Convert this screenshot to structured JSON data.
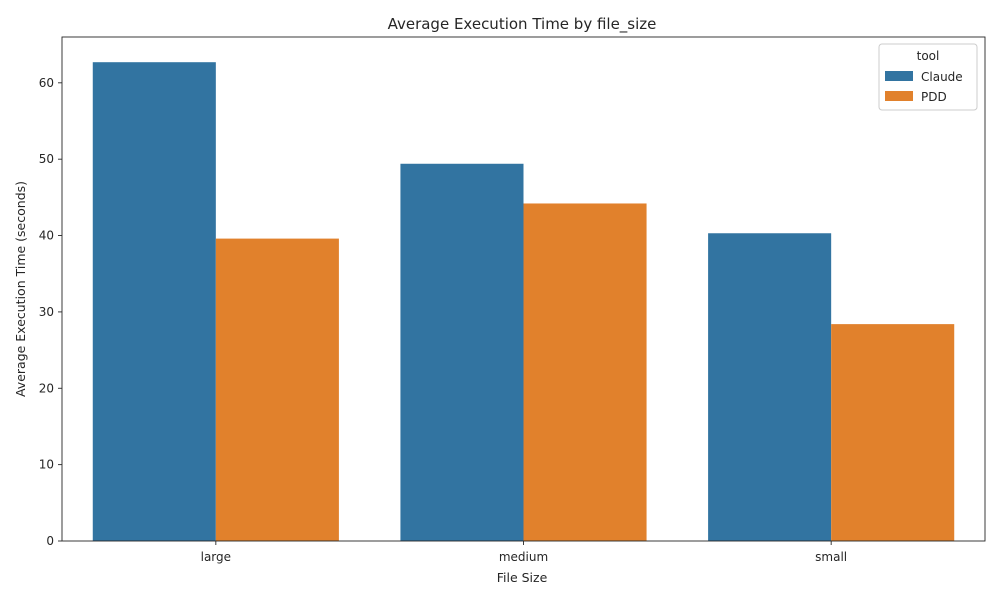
{
  "chart_data": {
    "type": "bar",
    "title": "Average Execution Time by file_size",
    "xlabel": "File Size",
    "ylabel": "Average Execution Time (seconds)",
    "categories": [
      "large",
      "medium",
      "small"
    ],
    "series": [
      {
        "name": "Claude",
        "color": "#3274a1",
        "values": [
          62.7,
          49.4,
          40.3
        ]
      },
      {
        "name": "PDD",
        "color": "#e1812c",
        "values": [
          39.6,
          44.2,
          28.4
        ]
      }
    ],
    "ylim": [
      0,
      66
    ],
    "yticks": [
      0,
      10,
      20,
      30,
      40,
      50,
      60
    ],
    "legend": {
      "title": "tool",
      "placement": "top-right"
    },
    "grid": false
  }
}
